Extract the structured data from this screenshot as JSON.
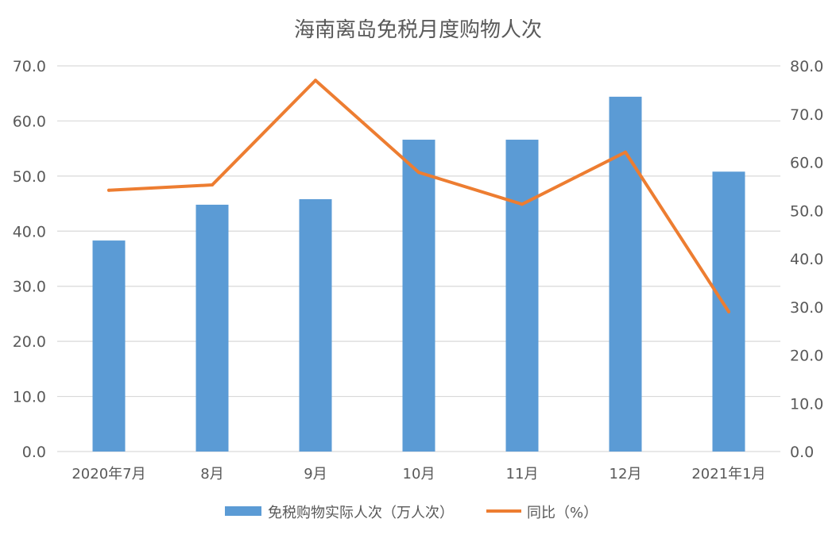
{
  "chart_data": {
    "type": "bar",
    "title": "海南离岛免税月度购物人次",
    "categories": [
      "2020年7月",
      "8月",
      "9月",
      "10月",
      "11月",
      "12月",
      "2021年1月"
    ],
    "series": [
      {
        "name": "免税购物实际人次（万人次）",
        "type": "bar",
        "axis": "left",
        "color": "#5B9BD5",
        "values": [
          38.3,
          44.8,
          45.8,
          56.6,
          56.6,
          64.4,
          50.8
        ]
      },
      {
        "name": "同比（%）",
        "type": "line",
        "axis": "right",
        "color": "#ED7D31",
        "values": [
          54.2,
          55.3,
          77.0,
          57.9,
          51.3,
          62.1,
          29.0
        ]
      }
    ],
    "y_left": {
      "min": 0,
      "max": 70,
      "step": 10,
      "tick_labels": [
        "0.0",
        "10.0",
        "20.0",
        "30.0",
        "40.0",
        "50.0",
        "60.0",
        "70.0"
      ]
    },
    "y_right": {
      "min": 0,
      "max": 80,
      "step": 10,
      "tick_labels": [
        "0.0",
        "10.0",
        "20.0",
        "30.0",
        "40.0",
        "50.0",
        "60.0",
        "70.0",
        "80.0"
      ]
    },
    "grid": true,
    "legend_position": "bottom"
  }
}
